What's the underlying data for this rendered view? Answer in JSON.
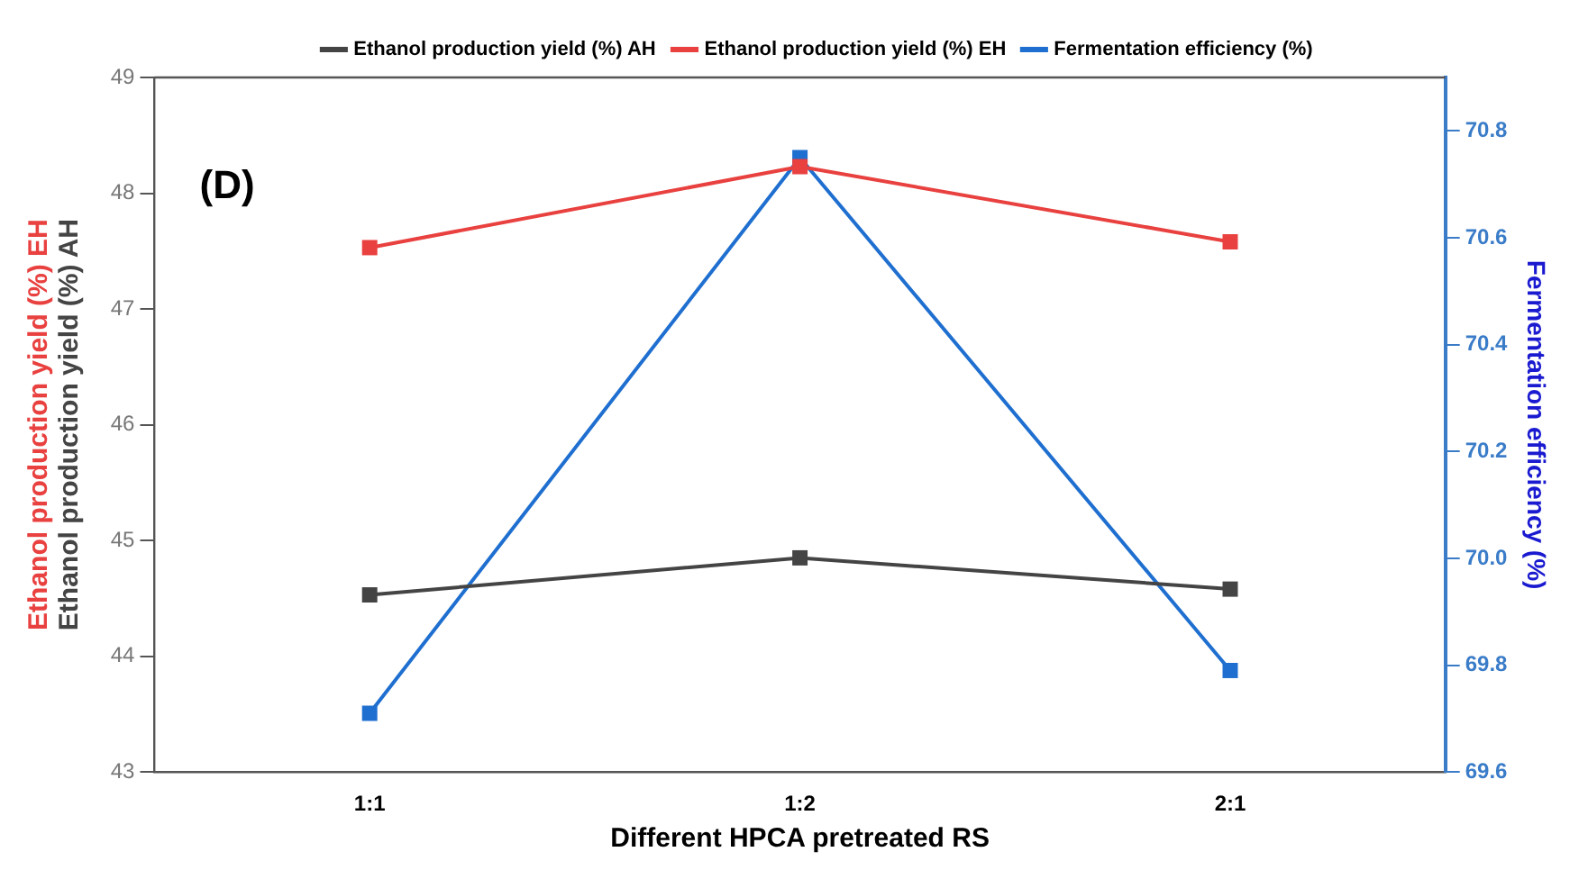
{
  "chart_data": {
    "type": "line",
    "xlabel": "Different HPCA pretreated RS",
    "ylabel": "Ethanol production yield (%) EH\nEthanol production yield (%) AH",
    "y2label": "Fermentation efficiency (%)",
    "annotations": [
      "(D)"
    ],
    "categories": [
      "1:1",
      "1:2",
      "2:1"
    ],
    "series": [
      {
        "name": "Ethanol production yield (%) AH",
        "color": "#444444",
        "values": [
          44.53,
          44.85,
          44.58
        ]
      },
      {
        "name": "Ethanol production yield (%) EH",
        "color": "#e8413f",
        "values": [
          47.53,
          48.23,
          47.58
        ]
      },
      {
        "name": "Fermentation efficiency (%)",
        "color": "#1f6fd0",
        "values": [
          69.71,
          70.75,
          69.79
        ],
        "axis": "y2"
      }
    ],
    "ylim": [
      43,
      49
    ],
    "yticks": [
      43,
      44,
      45,
      46,
      47,
      48,
      49
    ],
    "y2lim": [
      69.6,
      70.9
    ],
    "y2ticks": [
      69.6,
      69.8,
      {
        "value": 70,
        "label": "70.0"
      },
      70.2,
      70.4,
      70.6,
      70.8
    ],
    "grid": false,
    "legend": "top",
    "marker": "square",
    "line_style": "solid"
  }
}
